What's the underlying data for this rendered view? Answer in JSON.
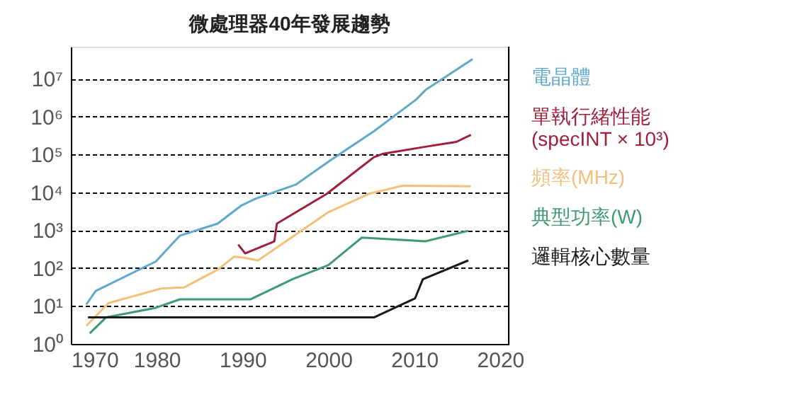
{
  "chart_data": {
    "type": "line",
    "title": "微處理器40年發展趨勢",
    "log": "y",
    "grid": "y",
    "legend": "right",
    "line_style": "solid",
    "marker": "none",
    "xlim": [
      1970,
      2021
    ],
    "xticks": [
      1970,
      1980,
      1990,
      2000,
      2010,
      2020
    ],
    "ylim": [
      1,
      70000000
    ],
    "yticks": [
      {
        "value": 1,
        "label": "10⁰"
      },
      {
        "value": 10,
        "label": "10¹"
      },
      {
        "value": 100,
        "label": "10²"
      },
      {
        "value": 1000,
        "label": "10³"
      },
      {
        "value": 10000,
        "label": "10⁴"
      },
      {
        "value": 100000,
        "label": "10⁵"
      },
      {
        "value": 1000000,
        "label": "10⁶"
      },
      {
        "value": 10000000,
        "label": "10⁷"
      }
    ],
    "series": [
      {
        "name": "電晶體",
        "color": "#5fa8cc",
        "x": [
          1971.8,
          1972.9,
          1979.9,
          1982.7,
          1987.1,
          1989.8,
          1991.5,
          1996.2,
          2000.3,
          2005.3,
          2010.2,
          2011.3,
          2016.8
        ],
        "values": [
          11,
          25,
          150,
          720,
          1500,
          4400,
          6800,
          16000,
          72000,
          410000,
          2800000,
          5000000,
          33000000
        ]
      },
      {
        "name": "單執行緒性能\n(specINT × 10³)",
        "color": "#a0203a",
        "x": [
          1989.5,
          1990.3,
          1993.7,
          1994.0,
          1999.8,
          2005.3,
          2006.4,
          2011.3,
          2014.9,
          2016.6
        ],
        "values": [
          420,
          245,
          510,
          1500,
          9100,
          85000,
          105000,
          160000,
          215000,
          330000
        ]
      },
      {
        "name": "頻率(MHz)",
        "color": "#f2c07a",
        "x": [
          1971.8,
          1974.4,
          1980.5,
          1983.2,
          1987.1,
          1989.0,
          1990.1,
          1991.8,
          1995.9,
          2000.0,
          2004.7,
          2008.6,
          2016.6
        ],
        "values": [
          3,
          12,
          29,
          31,
          91,
          200,
          190,
          160,
          690,
          3000,
          9100,
          15000,
          14500
        ]
      },
      {
        "name": "典型功率(W)",
        "color": "#3f9a72",
        "x": [
          1972.2,
          1974.1,
          1979.9,
          1982.7,
          1990.9,
          1995.9,
          2000.0,
          2003.9,
          2011.3,
          2016.3
        ],
        "values": [
          1.9,
          5,
          9,
          15,
          15,
          52,
          120,
          640,
          510,
          970
        ]
      },
      {
        "name": "邏輯核心數量",
        "color": "#1a1a1a",
        "x": [
          1972.0,
          2005.3,
          2010.1,
          2011.0,
          2016.3
        ],
        "values": [
          5,
          5,
          16,
          51,
          160
        ]
      }
    ]
  }
}
